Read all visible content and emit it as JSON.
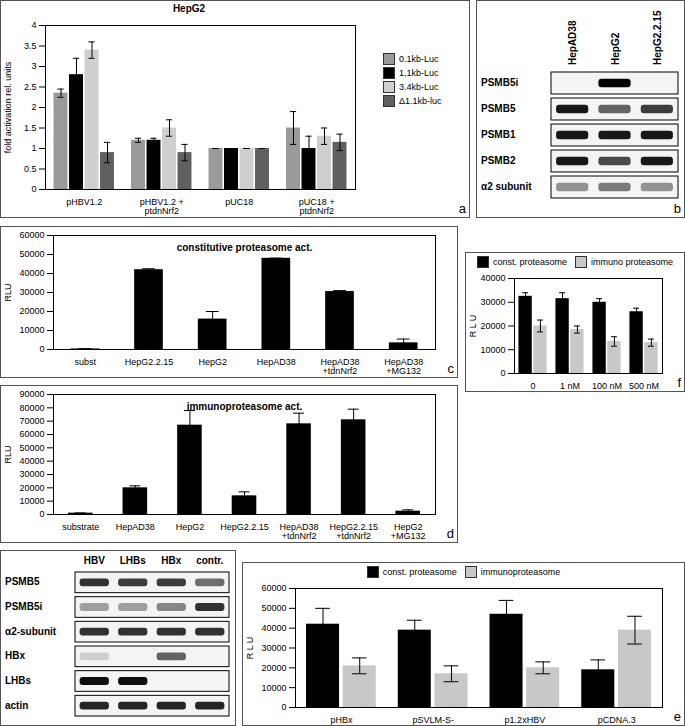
{
  "chart_data": [
    {
      "type": "bar",
      "panel": "a",
      "title": "HepG2",
      "ylabel": "fold activation rel. units",
      "categories": [
        "pHBV1.2",
        "pHBV1.2 + ptdnNrf2",
        "pUC18",
        "pUC18 + ptdnNrf2"
      ],
      "series": [
        {
          "name": "0.1kb-Luc",
          "color": "#9a9a9a",
          "values": [
            2.35,
            1.2,
            1,
            1.5
          ],
          "errors": [
            0.1,
            0.05,
            0,
            0.4
          ]
        },
        {
          "name": "1,1kb-Luc",
          "color": "#000000",
          "values": [
            2.8,
            1.2,
            1,
            1.0
          ],
          "errors": [
            0.4,
            0.05,
            0,
            0.3
          ]
        },
        {
          "name": "3.4kb-Luc",
          "color": "#cfcfcf",
          "values": [
            3.4,
            1.5,
            1,
            1.3
          ],
          "errors": [
            0.2,
            0.2,
            0,
            0.2
          ]
        },
        {
          "name": "Δ1.1kb-luc",
          "color": "#606060",
          "values": [
            0.9,
            0.9,
            1,
            1.15
          ],
          "errors": [
            0.25,
            0.2,
            0,
            0.2
          ]
        }
      ],
      "ylim": [
        0,
        4
      ],
      "yticks": [
        0,
        0.5,
        1,
        1.5,
        2,
        2.5,
        3,
        3.5,
        4
      ],
      "legend": "right"
    },
    {
      "type": "blot",
      "panel": "b",
      "lanes": [
        "HepAD38",
        "HepG2",
        "HepG2.2.15"
      ],
      "rows": [
        {
          "label": "PSMB5i",
          "bands": [
            0,
            1,
            0
          ]
        },
        {
          "label": "PSMB5",
          "bands": [
            0.9,
            0.6,
            0.75
          ]
        },
        {
          "label": "PSMB1",
          "bands": [
            0.9,
            0.9,
            0.9
          ]
        },
        {
          "label": "PSMB2",
          "bands": [
            0.9,
            0.7,
            0.9
          ]
        },
        {
          "label": "α2 subunit",
          "bands": [
            0.4,
            0.5,
            0.4
          ]
        }
      ]
    },
    {
      "type": "bar",
      "panel": "c",
      "title": "constitutive proteasome act.",
      "ylabel": "RLU",
      "categories": [
        "subst",
        "HepG2.2.15",
        "HepG2",
        "HepAD38",
        "HepAD38 +tdnNrf2",
        "HepAD38 +MG132"
      ],
      "values": [
        300,
        42000,
        16000,
        48000,
        30500,
        3500
      ],
      "errors": [
        0,
        500,
        4000,
        0,
        500,
        2000
      ],
      "color": "#000000",
      "ylim": [
        0,
        60000
      ],
      "yticks": [
        0,
        10000,
        20000,
        30000,
        40000,
        50000,
        60000
      ]
    },
    {
      "type": "bar",
      "panel": "f",
      "ylabel": "R L U",
      "categories": [
        "0",
        "1 nM",
        "100 nM",
        "500 nM"
      ],
      "series": [
        {
          "name": "const. proteasome",
          "color": "#000000",
          "values": [
            32500,
            31500,
            30000,
            26000
          ],
          "errors": [
            1500,
            2500,
            1500,
            1500
          ]
        },
        {
          "name": "immuno proteasome",
          "color": "#c8c8c8",
          "values": [
            20000,
            18500,
            13500,
            13000
          ],
          "errors": [
            2500,
            1500,
            2000,
            1500
          ]
        }
      ],
      "ylim": [
        0,
        40000
      ],
      "yticks": [
        0,
        10000,
        20000,
        30000,
        40000
      ],
      "legend": "top"
    },
    {
      "type": "bar",
      "panel": "d",
      "title": "immunoproteasome act.",
      "ylabel": "RLU",
      "categories": [
        "substrate",
        "HepAD38",
        "HepG2",
        "HepG2.2.15",
        "HepAD38 +tdnNrf2",
        "HepG2.2.15 +tdnNrf2",
        "HepG2 +MG132"
      ],
      "values": [
        1000,
        20000,
        67000,
        14000,
        68000,
        71000,
        2500
      ],
      "errors": [
        0,
        1500,
        11000,
        3000,
        8000,
        8000,
        1000
      ],
      "color": "#000000",
      "ylim": [
        0,
        90000
      ],
      "yticks": [
        0,
        10000,
        20000,
        30000,
        40000,
        50000,
        60000,
        70000,
        80000,
        90000
      ]
    },
    {
      "type": "blot",
      "lanes": [
        "HBV",
        "LHBs",
        "HBx",
        "contr."
      ],
      "rows": [
        {
          "label": "PSMB5",
          "bands": [
            0.8,
            0.75,
            0.75,
            0.55
          ]
        },
        {
          "label": "PSMB5i",
          "bands": [
            0.35,
            0.35,
            0.45,
            0.8
          ]
        },
        {
          "label": "α2-subunit",
          "bands": [
            0.8,
            0.8,
            0.8,
            0.8
          ]
        },
        {
          "label": "HBx",
          "bands": [
            0.15,
            0,
            0.6,
            0
          ]
        },
        {
          "label": "LHBs",
          "bands": [
            0.95,
            0.95,
            0,
            0
          ]
        },
        {
          "label": "actin",
          "bands": [
            0.85,
            0.85,
            0.85,
            0.85
          ]
        }
      ]
    },
    {
      "type": "bar",
      "panel": "e",
      "ylabel": "R L U",
      "categories": [
        "pHBx",
        "pSVLM-S-",
        "p1.2xHBV",
        "pCDNA.3"
      ],
      "series": [
        {
          "name": "const. proteasome",
          "color": "#000000",
          "values": [
            42000,
            39000,
            47000,
            19000
          ],
          "errors": [
            8000,
            5000,
            7000,
            5000
          ]
        },
        {
          "name": "immunoproteasome",
          "color": "#c8c8c8",
          "values": [
            21000,
            17000,
            20000,
            39000
          ],
          "errors": [
            4000,
            4000,
            3000,
            7000
          ]
        }
      ],
      "ylim": [
        0,
        60000
      ],
      "yticks": [
        0,
        10000,
        20000,
        30000,
        40000,
        50000,
        60000
      ],
      "legend": "top"
    }
  ]
}
